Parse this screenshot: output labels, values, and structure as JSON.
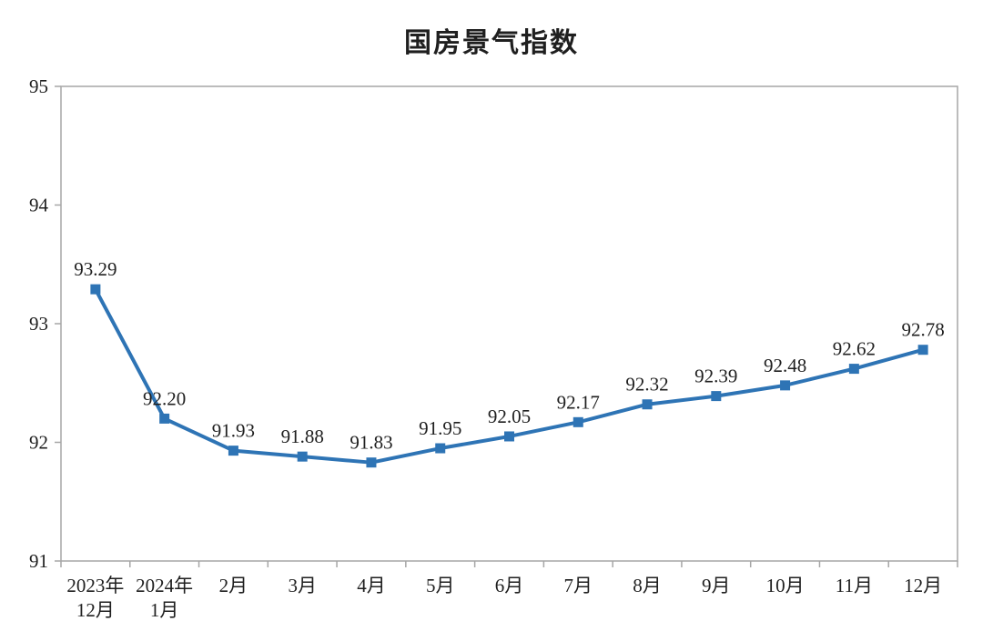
{
  "chart_data": {
    "type": "line",
    "title": "国房景气指数",
    "categories": [
      "2023年\n12月",
      "2024年\n1月",
      "2月",
      "3月",
      "4月",
      "5月",
      "6月",
      "7月",
      "8月",
      "9月",
      "10月",
      "11月",
      "12月"
    ],
    "values": [
      93.29,
      92.2,
      91.93,
      91.88,
      91.83,
      91.95,
      92.05,
      92.17,
      92.32,
      92.39,
      92.48,
      92.62,
      92.78
    ],
    "data_labels": [
      "93.29",
      "92.20",
      "91.93",
      "91.88",
      "91.83",
      "91.95",
      "92.05",
      "92.17",
      "92.32",
      "92.39",
      "92.48",
      "92.62",
      "92.78"
    ],
    "yticks": [
      91,
      92,
      93,
      94,
      95
    ],
    "ylim": [
      91,
      95
    ],
    "xlabel": "",
    "ylabel": "",
    "grid": "off",
    "legend": "none",
    "marker": "square",
    "colors": {
      "line": "#2E74B5",
      "marker": "#2E74B5",
      "axis": "#A6A6A6",
      "text": "#1F1F1F",
      "title": "#1F1F1F"
    }
  }
}
